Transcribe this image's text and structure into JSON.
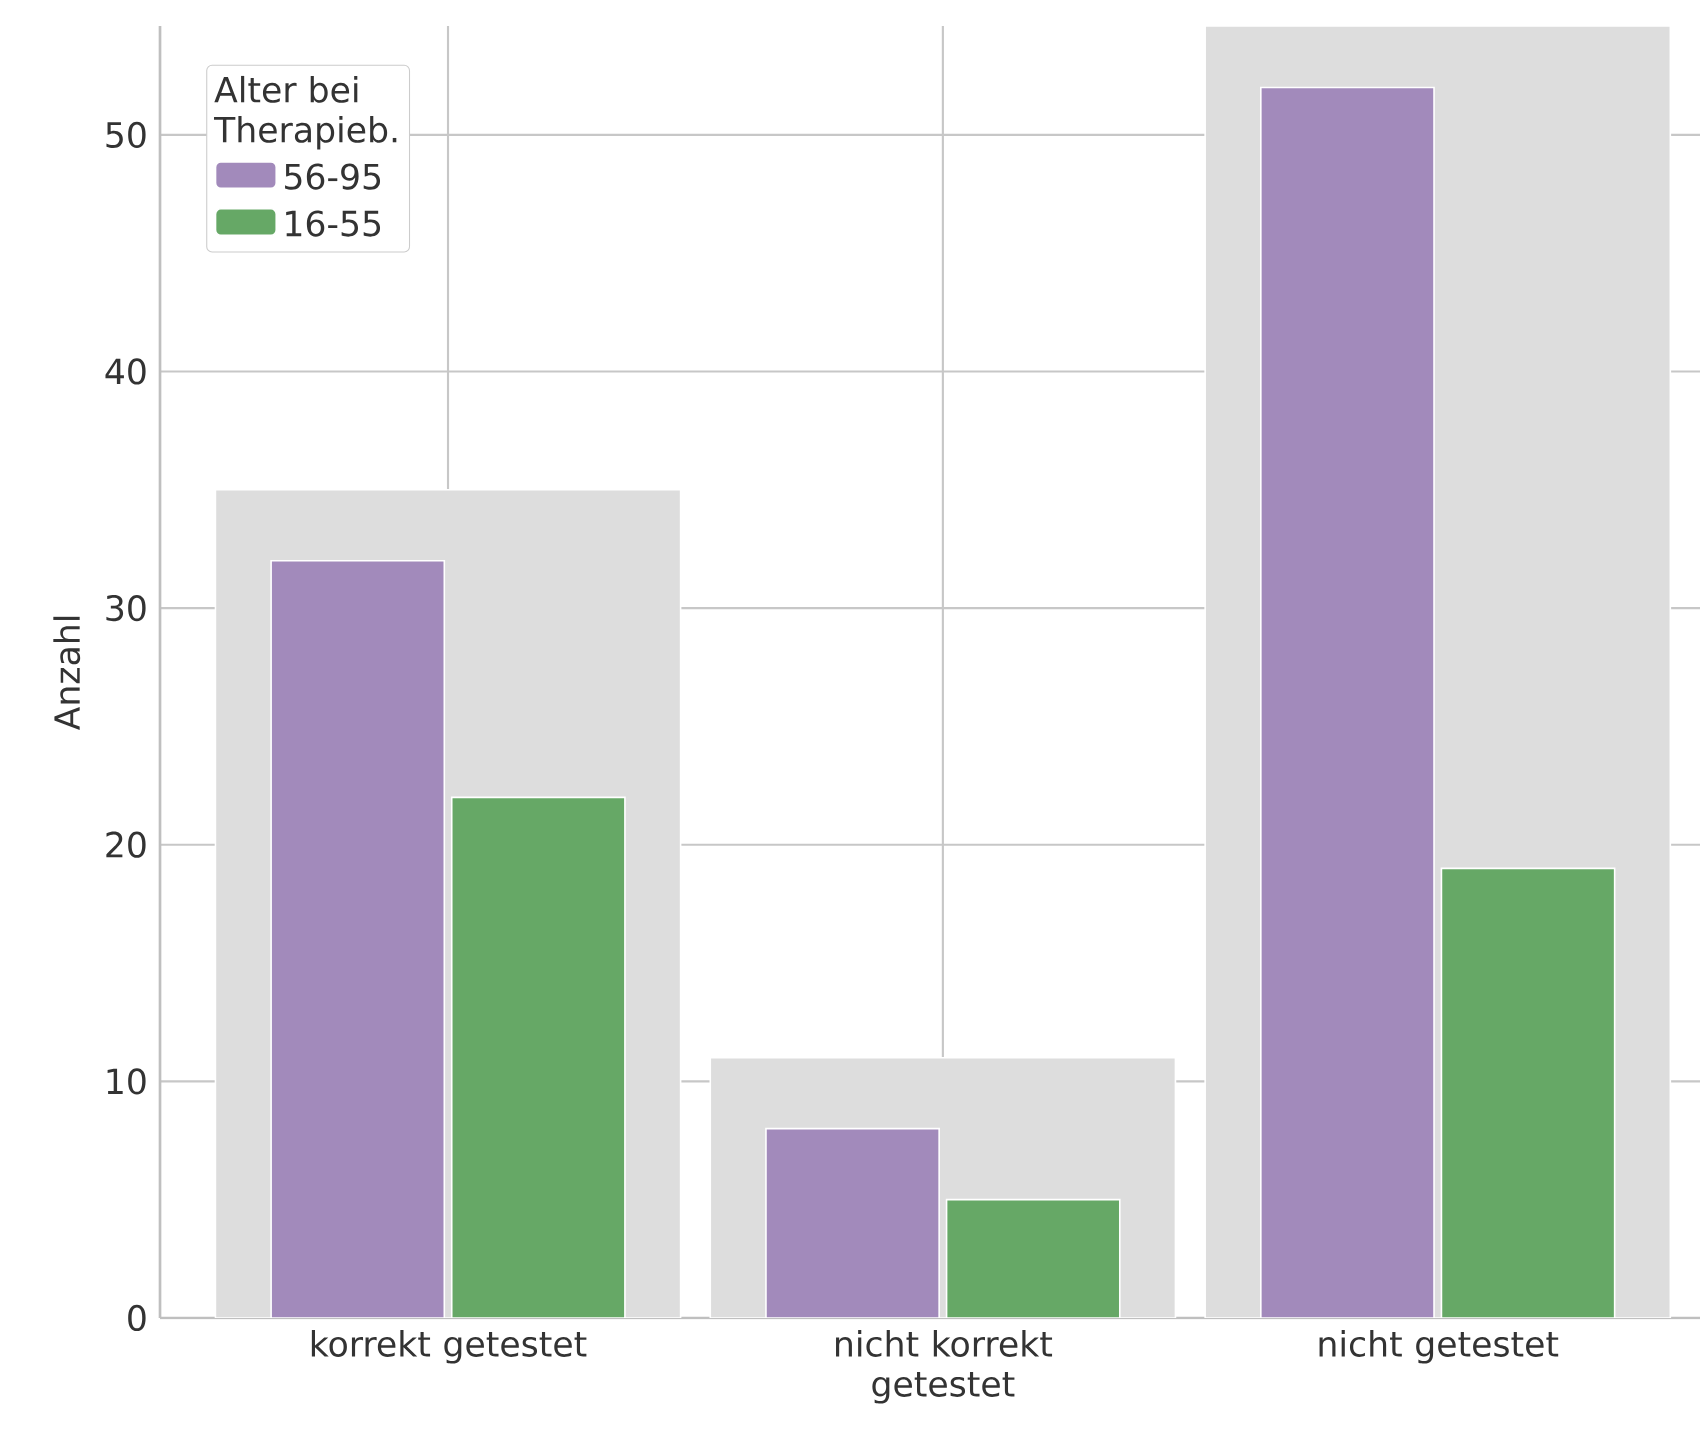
{
  "chart_data": {
    "type": "bar",
    "ylabel": "Anzahl",
    "legend_title": "Alter bei Therapieb.",
    "categories": [
      "korrekt getestet",
      "nicht korrekt getestet",
      "nicht getestet"
    ],
    "series": [
      {
        "color": "#dddddd",
        "values": [
          35,
          11,
          54.6
        ]
      },
      {
        "name": "56-95",
        "color": "#a28abb",
        "values": [
          32,
          8,
          52
        ]
      },
      {
        "name": "16-55",
        "color": "#66a866",
        "values": [
          22,
          5,
          19
        ]
      }
    ],
    "ylim": [
      0,
      54.6
    ],
    "yticks": [
      0,
      10,
      20,
      30,
      40,
      50
    ],
    "grid": true,
    "legend": "top left"
  }
}
